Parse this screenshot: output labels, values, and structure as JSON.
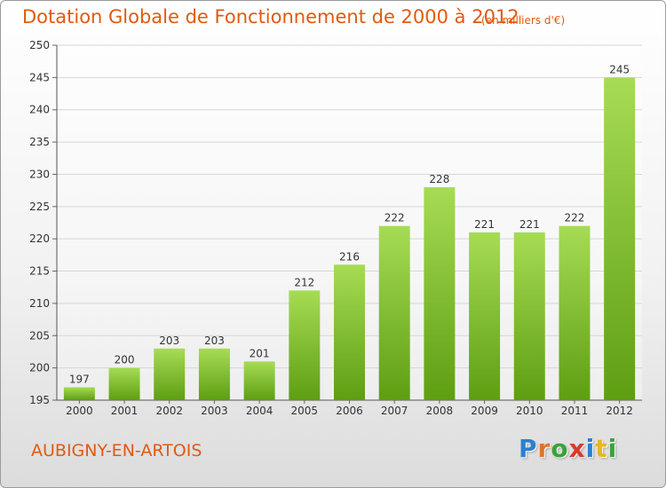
{
  "header": {
    "title": "Dotation Globale de Fonctionnement de 2000 à 2012",
    "subtitle": "(en milliers d'€)"
  },
  "footer": {
    "commune": "AUBIGNY-EN-ARTOIS",
    "logo_text": "Proxiti",
    "logo_colors": [
      "#2e7fd0",
      "#e0752b",
      "#3aa33a",
      "#d93a2b",
      "#2e7fd0",
      "#e5b81e",
      "#3aa33a"
    ]
  },
  "colors": {
    "bar_top": "#a6dc54",
    "bar_bottom": "#5e9e12",
    "text": "#e05a10"
  },
  "chart_data": {
    "type": "bar",
    "categories": [
      "2000",
      "2001",
      "2002",
      "2003",
      "2004",
      "2005",
      "2006",
      "2007",
      "2008",
      "2009",
      "2010",
      "2011",
      "2012"
    ],
    "values": [
      197,
      200,
      203,
      203,
      201,
      212,
      216,
      222,
      228,
      221,
      221,
      222,
      245
    ],
    "data_labels": [
      "197",
      "200",
      "203",
      "203",
      "201",
      "212",
      "216",
      "222",
      "228",
      "221",
      "221",
      "222",
      "245"
    ],
    "title": "Dotation Globale de Fonctionnement de 2000 à 2012",
    "xlabel": "",
    "ylabel": "",
    "ylim": [
      195,
      250
    ],
    "yticks": [
      195,
      200,
      205,
      210,
      215,
      220,
      225,
      230,
      235,
      240,
      245,
      250
    ],
    "grid": true
  }
}
